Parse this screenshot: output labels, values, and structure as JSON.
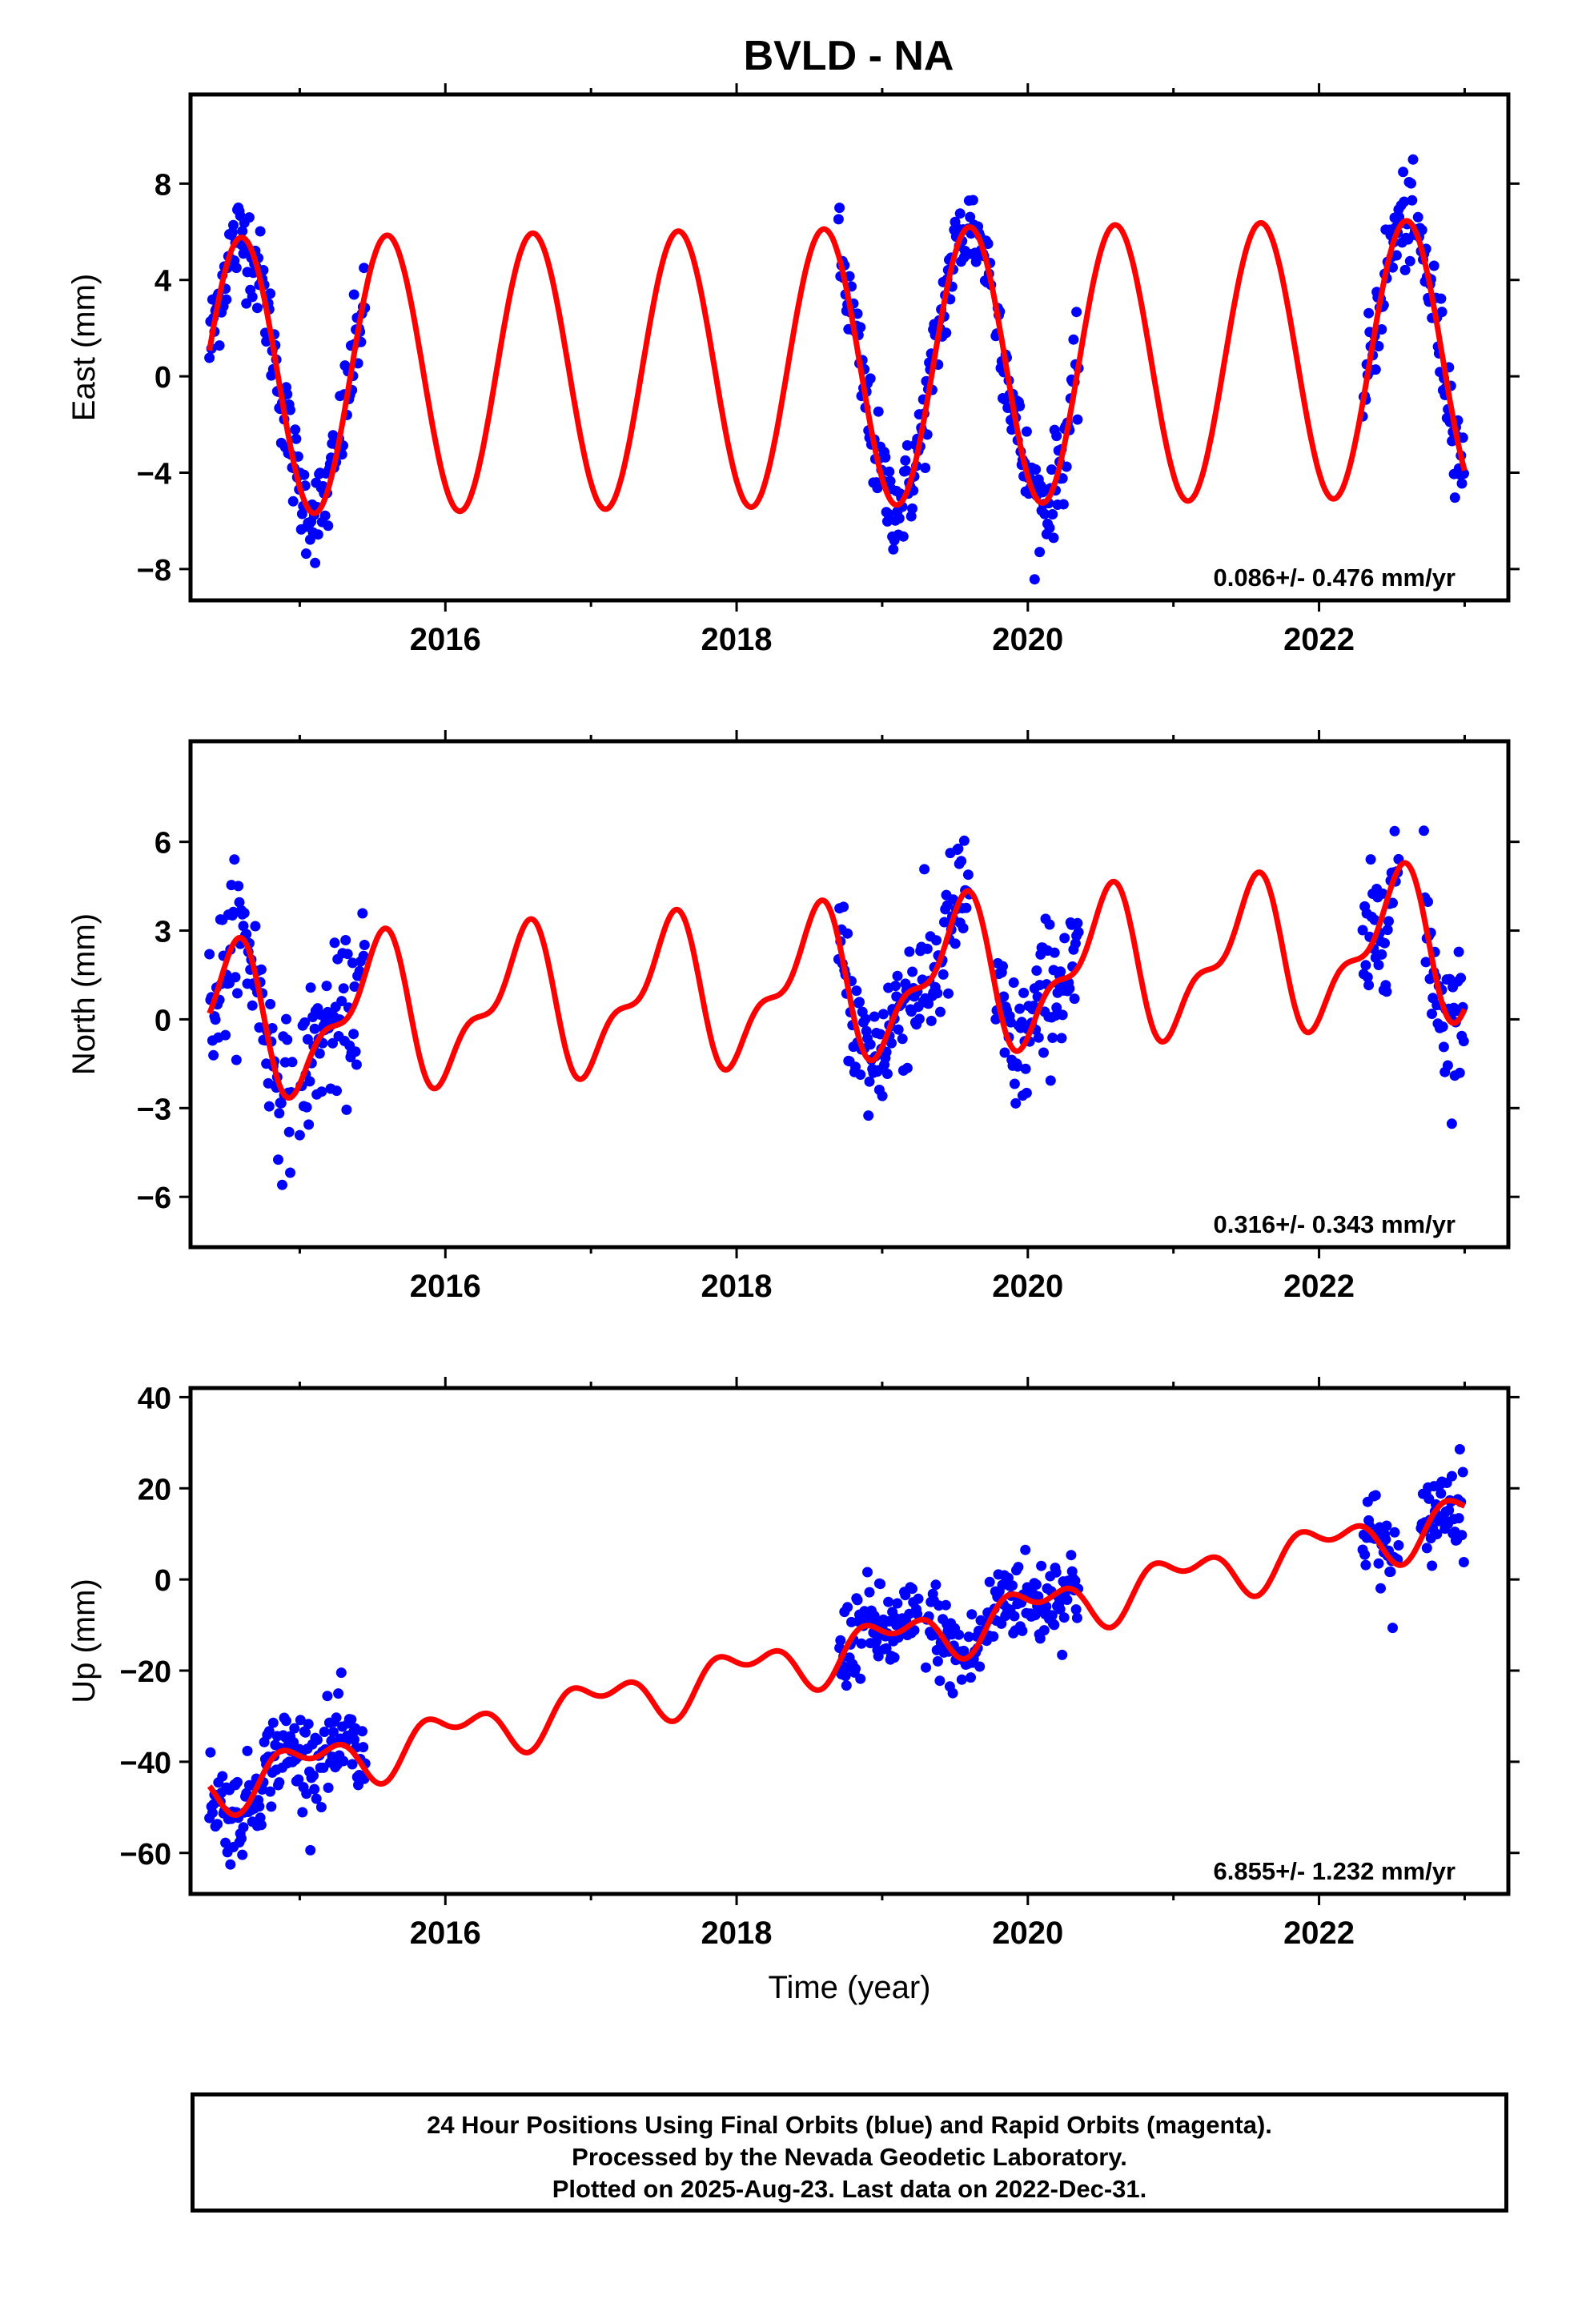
{
  "title": "BVLD - NA",
  "colors": {
    "data_points": "#0000ff",
    "model_curve": "#ff0000",
    "axes": "#000000"
  },
  "footer": {
    "line1": "24 Hour Positions Using Final Orbits (blue) and Rapid Orbits (magenta).",
    "line2": "Processed by the Nevada Geodetic Laboratory.",
    "line3": "Plotted on 2025-Aug-23. Last data on 2022-Dec-31."
  },
  "chart_data": [
    {
      "type": "scatter",
      "ylabel": "East (mm)",
      "xlabel": "",
      "xlim": [
        2014.25,
        2023.3
      ],
      "ylim": [
        -9.3,
        11.7
      ],
      "xticks": [
        2016,
        2018,
        2020,
        2022
      ],
      "yticks": [
        -8,
        -4,
        0,
        4,
        8
      ],
      "velocity": "0.086+/- 0.476 mm/yr",
      "data_segments": [
        [
          2014.38,
          2015.45
        ],
        [
          2018.7,
          2019.75
        ],
        [
          2019.78,
          2020.35
        ],
        [
          2022.3,
          2022.55
        ],
        [
          2022.55,
          2023.0
        ]
      ],
      "model": {
        "offset": 0.0,
        "trend": 0.086,
        "a1": 5.75,
        "p1": 0.35,
        "a2": 0.0,
        "p2": 0.0,
        "t_end": 2023.0
      },
      "noise_sd": 1.0,
      "series": [
        {
          "name": "24 Hour Positions",
          "kind": "points"
        },
        {
          "name": "",
          "kind": "model"
        }
      ]
    },
    {
      "type": "scatter",
      "ylabel": "North (mm)",
      "xlabel": "",
      "xlim": [
        2014.25,
        2023.3
      ],
      "ylim": [
        -7.7,
        9.4
      ],
      "xticks": [
        2016,
        2018,
        2020,
        2022
      ],
      "yticks": [
        -6,
        -3,
        0,
        3,
        6
      ],
      "velocity": "0.316+/- 0.343 mm/yr",
      "data_segments": [
        [
          2014.38,
          2014.95
        ],
        [
          2015.0,
          2015.45
        ],
        [
          2018.7,
          2019.05
        ],
        [
          2019.05,
          2019.6
        ],
        [
          2019.78,
          2020.35
        ],
        [
          2022.3,
          2022.55
        ],
        [
          2022.72,
          2023.0
        ]
      ],
      "model": {
        "offset": -0.2,
        "trend": 0.316,
        "a1": 2.2,
        "p1": 0.27,
        "a2": 1.0,
        "p2": 0.0,
        "t_end": 2023.0
      },
      "noise_sd": 1.2,
      "series": [
        {
          "name": "24 Hour Positions",
          "kind": "points"
        },
        {
          "name": "",
          "kind": "model"
        }
      ]
    },
    {
      "type": "scatter",
      "ylabel": "Up (mm)",
      "xlabel": "Time (year)",
      "xlim": [
        2014.25,
        2023.3
      ],
      "ylim": [
        -69,
        42
      ],
      "xticks": [
        2016,
        2018,
        2020,
        2022
      ],
      "yticks": [
        -60,
        -40,
        -20,
        0,
        20,
        40
      ],
      "velocity": "6.855+/- 1.232 mm/yr",
      "data_segments": [
        [
          2014.38,
          2014.95
        ],
        [
          2014.95,
          2015.45
        ],
        [
          2018.7,
          2019.25
        ],
        [
          2019.3,
          2019.75
        ],
        [
          2019.75,
          2020.35
        ],
        [
          2022.3,
          2022.55
        ],
        [
          2022.7,
          2023.0
        ]
      ],
      "model": {
        "offset": -45.5,
        "trend": 6.855,
        "a1": 4.5,
        "p1": 0.8,
        "a2": 3.0,
        "p2": 0.2,
        "t_end": 2023.0
      },
      "noise_sd": 5.0,
      "series": [
        {
          "name": "24 Hour Positions",
          "kind": "points"
        },
        {
          "name": "",
          "kind": "model"
        }
      ]
    }
  ]
}
